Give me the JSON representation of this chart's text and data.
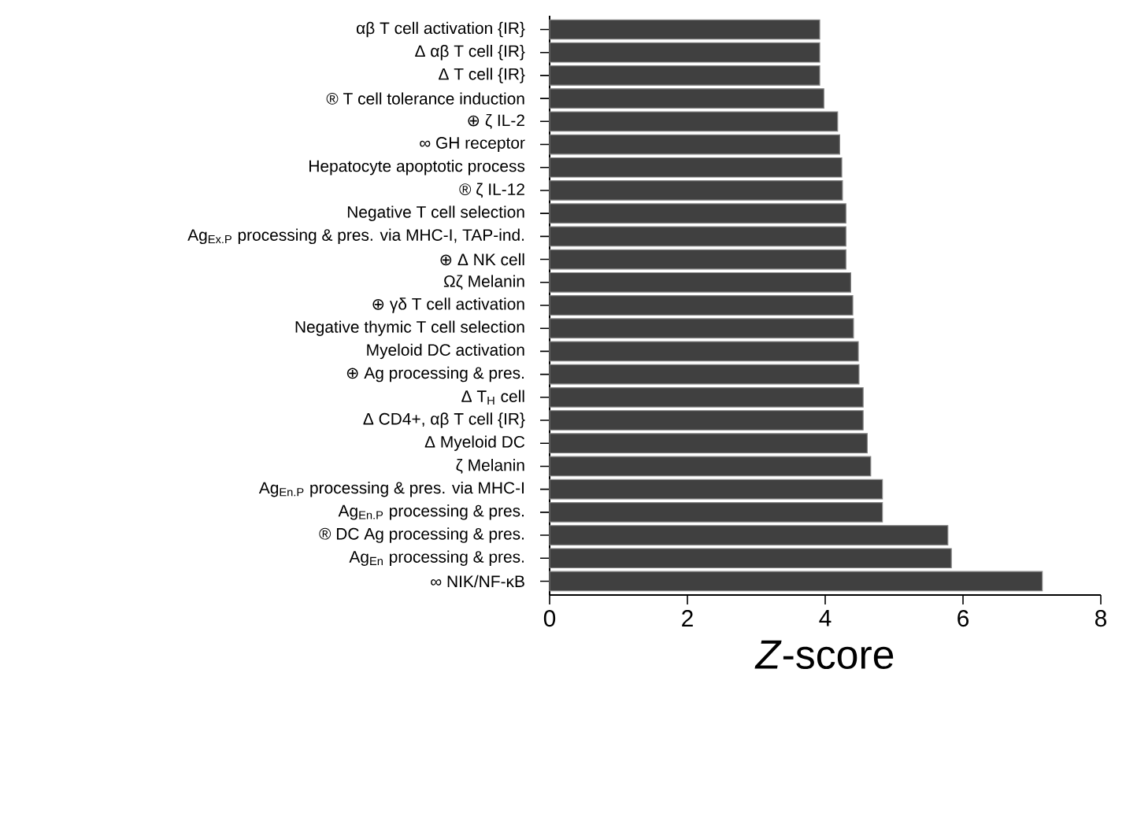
{
  "chart_data": {
    "type": "bar",
    "orientation": "horizontal",
    "xlabel": "*Z*-score",
    "color": "#404040",
    "categories": [
      "αβ T cell activation {IR}",
      "Δ αβ T cell {IR}",
      "Δ T cell {IR}",
      "® T cell tolerance induction",
      "⊕ ζ IL-2",
      "∞ GH receptor",
      "Hepatocyte apoptotic process",
      "® ζ IL-12",
      "Negative T cell selection",
      "Ag$_{Ex.P}$ processing & pres. via MHC-I, TAP-ind.",
      "⊕ Δ NK cell",
      "Ωζ Melanin",
      "⊕ γδ T cell activation",
      "Negative thymic T cell selection",
      "Myeloid DC activation",
      "⊕ Ag processing & pres.",
      "Δ T$_{H}$ cell",
      "Δ CD4+, αβ T cell {IR}",
      "Δ Myeloid DC",
      "ζ Melanin",
      "Ag$_{En.P}$ processing & pres. via MHC-I",
      "Ag$_{En.P}$ processing & pres.",
      "® DC Ag processing & pres.",
      "Ag$_{En}$ processing & pres.",
      "∞ NIK/NF-κB"
    ],
    "values": [
      3.92,
      3.92,
      3.92,
      3.98,
      4.18,
      4.21,
      4.24,
      4.25,
      4.3,
      4.3,
      4.3,
      4.37,
      4.4,
      4.41,
      4.48,
      4.49,
      4.55,
      4.55,
      4.61,
      4.66,
      4.83,
      4.83,
      5.78,
      5.83,
      7.15
    ],
    "xlim": [
      0,
      8
    ],
    "xticks": [
      0,
      2,
      4,
      6,
      8
    ]
  }
}
